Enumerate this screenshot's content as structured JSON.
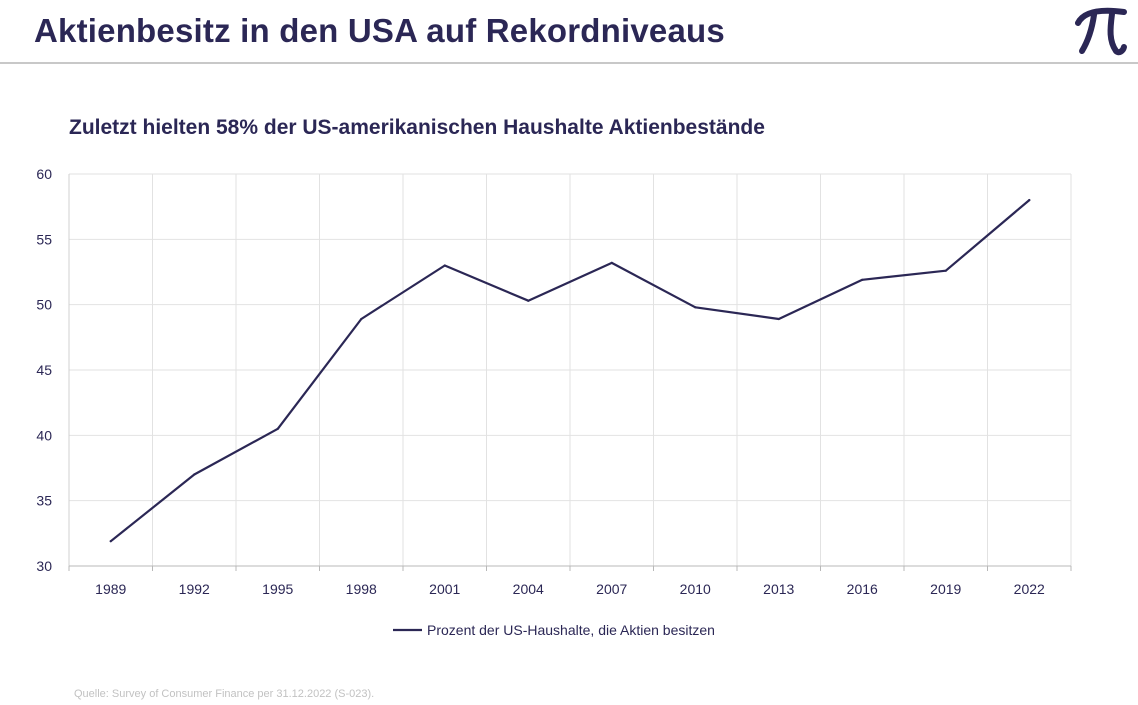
{
  "header": {
    "title": "Aktienbesitz in den USA auf Rekordniveaus",
    "logo_icon": "pi-logo-icon",
    "accent_color": "#2b2755"
  },
  "chart_data": {
    "type": "line",
    "title": "Zuletzt hielten 58% der US-amerikanischen Haushalte Aktienbestände",
    "xlabel": "",
    "ylabel": "",
    "x": [
      "1989",
      "1992",
      "1995",
      "1998",
      "2001",
      "2004",
      "2007",
      "2010",
      "2013",
      "2016",
      "2019",
      "2022"
    ],
    "series": [
      {
        "name": "Prozent der US-Haushalte, die Aktien besitzen",
        "values": [
          31.9,
          37.0,
          40.5,
          48.9,
          53.0,
          50.3,
          53.2,
          49.8,
          48.9,
          51.9,
          52.6,
          58.0
        ],
        "color": "#2b2755"
      }
    ],
    "ylim": [
      30,
      60
    ],
    "yticks": [
      "30",
      "35",
      "40",
      "45",
      "50",
      "55",
      "60"
    ],
    "grid": true,
    "legend_position": "bottom-center"
  },
  "footer": {
    "source": "Quelle: Survey of Consumer Finance per 31.12.2022 (S-023)."
  }
}
